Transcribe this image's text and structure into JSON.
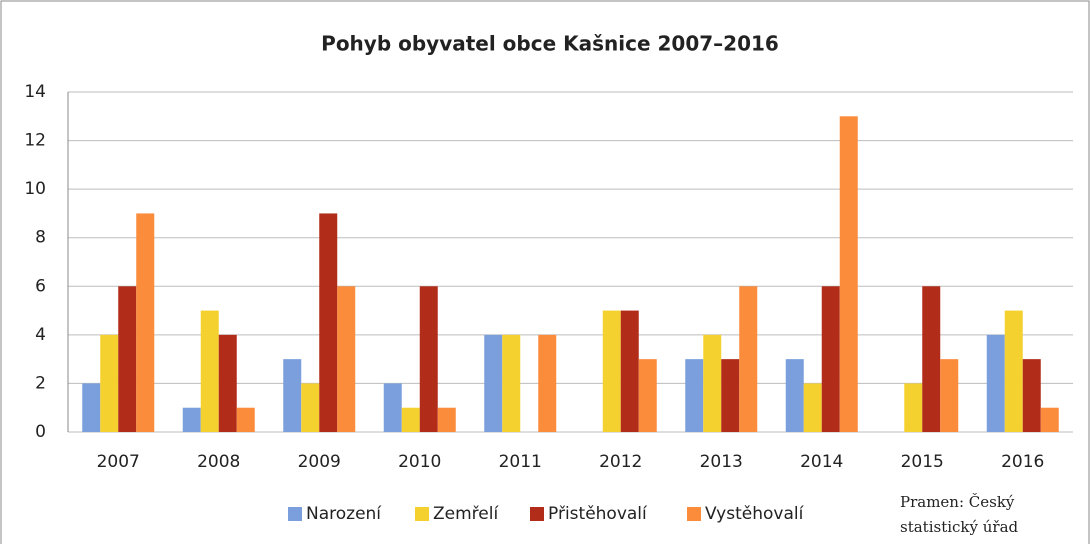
{
  "chart_data": {
    "type": "bar",
    "title": "Pohyb obyvatel obce Kašnice 2007–2016",
    "categories": [
      "2007",
      "2008",
      "2009",
      "2010",
      "2011",
      "2012",
      "2013",
      "2014",
      "2015",
      "2016"
    ],
    "series": [
      {
        "name": "Narození",
        "color": "#7a9fdc",
        "values": [
          2,
          1,
          3,
          2,
          4,
          0,
          3,
          3,
          0,
          4
        ]
      },
      {
        "name": "Zemřelí",
        "color": "#f5d130",
        "values": [
          4,
          5,
          2,
          1,
          4,
          5,
          4,
          2,
          2,
          5
        ]
      },
      {
        "name": "Přistěhovalí",
        "color": "#b22c1a",
        "values": [
          6,
          4,
          9,
          6,
          0,
          5,
          3,
          6,
          6,
          3
        ]
      },
      {
        "name": "Vystěhovalí",
        "color": "#fb8c3c",
        "values": [
          9,
          1,
          6,
          1,
          4,
          3,
          6,
          13,
          3,
          1
        ]
      }
    ],
    "ylim": [
      0,
      14
    ],
    "yticks": [
      0,
      2,
      4,
      6,
      8,
      10,
      12,
      14
    ],
    "grid": true,
    "legend": "bottom",
    "source": [
      "Pramen: Český",
      "statistický úřad"
    ]
  }
}
